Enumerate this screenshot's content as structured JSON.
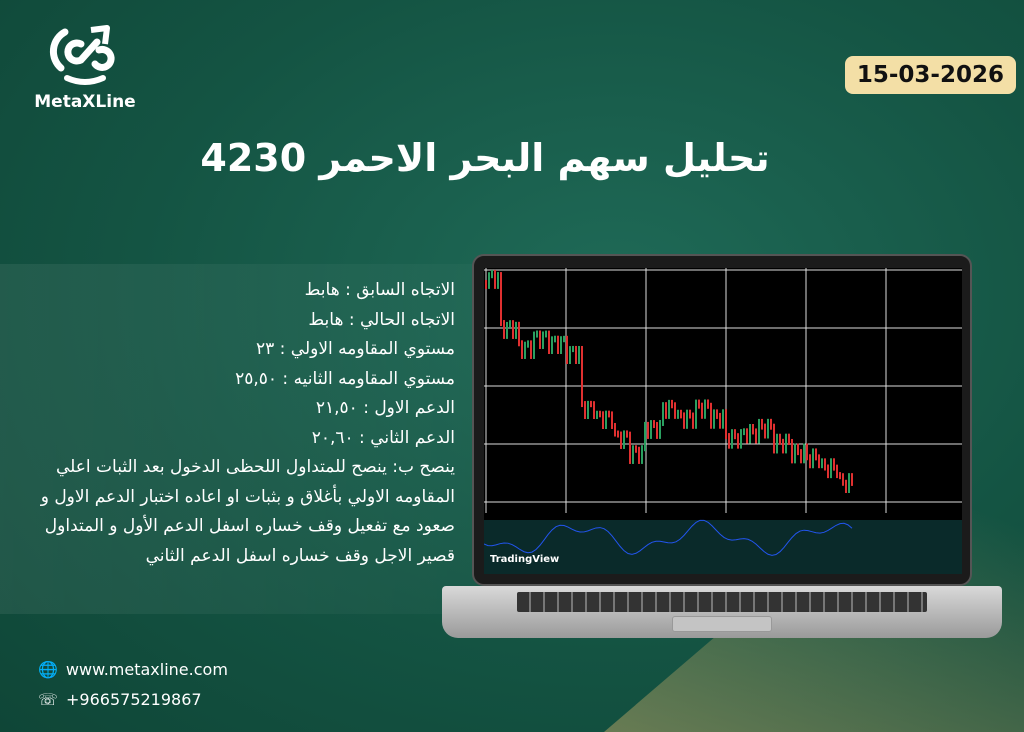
{
  "brand": {
    "name": "MetaXLine"
  },
  "date": "15-03-2026",
  "title": "تحليل سهم البحر الاحمر 4230",
  "info": [
    "الاتجاه السابق : هابط",
    "الاتجاه الحالي : هابط",
    "مستوي المقاومه الاولي : ٢٣",
    "مستوي المقاومه الثانيه : ٢٥,٥٠",
    "الدعم الاول : ٢١,٥٠",
    "الدعم الثاني : ٢٠,٦٠",
    "ينصح ب: ينصح للمتداول اللحظى الدخول بعد الثبات اعلي المقاومه الاولي بأغلاق و بثبات او اعاده اختبار الدعم الاول و صعود مع تفعيل وقف خساره اسفل الدعم الأول و المتداول قصير الاجل وقف خساره اسفل الدعم الثاني"
  ],
  "chart_watermark": "TradingView",
  "contact": {
    "website": "www.metaxline.com",
    "phone": "+966575219867",
    "website_icon": "globe-icon",
    "phone_icon": "whatsapp-icon"
  },
  "colors": {
    "background": "#145443",
    "date_badge": "#f3dfa6",
    "candle_down": "#e03030",
    "candle_up": "#2aa060",
    "indicator": "#2255ee"
  }
}
